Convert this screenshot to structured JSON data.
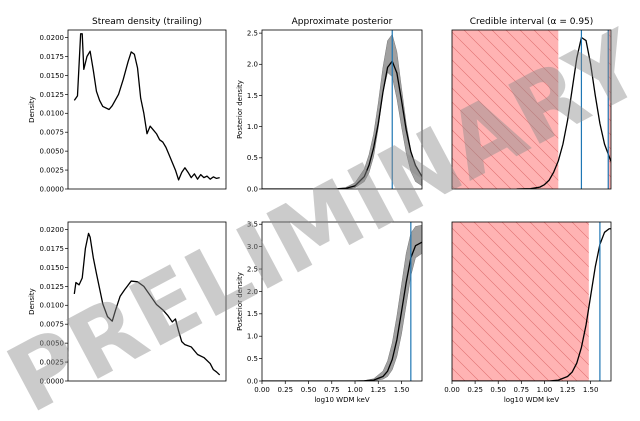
{
  "watermark": "PRELIMINARY",
  "chart_data": [
    {
      "id": "p00",
      "type": "line",
      "title": "Stream density (trailing)",
      "xlabel": "",
      "ylabel": "Density",
      "xlim": [
        0,
        100
      ],
      "ylim": [
        0,
        0.021
      ],
      "xticks": [],
      "xticklabels": [],
      "yticks": [
        0,
        0.0025,
        0.005,
        0.0075,
        0.01,
        0.0125,
        0.015,
        0.0175,
        0.02
      ],
      "yticklabels": [
        "0.0000",
        "0.0025",
        "0.0050",
        "0.0075",
        "0.0100",
        "0.0125",
        "0.0150",
        "0.0175",
        "0.0200"
      ],
      "series": [
        {
          "x": [
            4,
            6,
            8,
            9,
            10,
            12,
            14,
            16,
            18,
            20,
            22,
            26,
            28,
            32,
            35,
            38,
            40,
            42,
            44,
            46,
            48,
            50,
            52,
            54,
            56,
            58,
            60,
            62,
            64,
            66,
            68,
            70,
            72,
            74,
            76,
            78,
            80,
            82,
            84,
            86,
            88,
            90,
            92,
            94,
            96
          ],
          "y": [
            0.0117,
            0.0123,
            0.0205,
            0.0205,
            0.0158,
            0.0175,
            0.0182,
            0.0157,
            0.0129,
            0.0117,
            0.0109,
            0.0105,
            0.011,
            0.0125,
            0.0145,
            0.0168,
            0.0181,
            0.0178,
            0.016,
            0.012,
            0.01,
            0.0073,
            0.0083,
            0.0078,
            0.0073,
            0.0065,
            0.0062,
            0.0055,
            0.0045,
            0.0035,
            0.0025,
            0.0012,
            0.0022,
            0.0028,
            0.0022,
            0.0015,
            0.002,
            0.0013,
            0.0019,
            0.0015,
            0.0017,
            0.0013,
            0.0016,
            0.0014,
            0.0015
          ]
        }
      ]
    },
    {
      "id": "p01",
      "type": "line",
      "title": "Approximate posterior",
      "xlabel": "",
      "ylabel": "Posterior density",
      "xlim": [
        0,
        1.72
      ],
      "ylim": [
        0,
        2.55
      ],
      "xticks": [],
      "xticklabels": [],
      "yticks": [
        0,
        0.5,
        1.0,
        1.5,
        2.0,
        2.5
      ],
      "yticklabels": [
        "0.0",
        "0.5",
        "1.0",
        "1.5",
        "2.0",
        "2.5"
      ],
      "band": {
        "x": [
          0,
          0.6,
          0.8,
          0.9,
          1.0,
          1.1,
          1.15,
          1.2,
          1.25,
          1.3,
          1.35,
          1.4,
          1.45,
          1.5,
          1.55,
          1.6,
          1.65,
          1.72
        ],
        "lower": [
          0,
          0,
          0,
          0.003,
          0.02,
          0.12,
          0.26,
          0.52,
          0.98,
          1.55,
          1.87,
          1.8,
          1.45,
          1.0,
          0.58,
          0.28,
          0.12,
          0.05
        ],
        "upper": [
          0,
          0.002,
          0.008,
          0.025,
          0.1,
          0.32,
          0.55,
          0.88,
          1.38,
          1.95,
          2.38,
          2.48,
          2.2,
          1.62,
          1.05,
          0.62,
          0.35,
          0.2
        ]
      },
      "series": [
        {
          "x": [
            0,
            0.6,
            0.8,
            0.9,
            1.0,
            1.1,
            1.15,
            1.2,
            1.25,
            1.3,
            1.35,
            1.4,
            1.45,
            1.5,
            1.55,
            1.6,
            1.65,
            1.72
          ],
          "y": [
            0,
            0,
            0.002,
            0.01,
            0.05,
            0.2,
            0.38,
            0.66,
            1.05,
            1.55,
            1.95,
            2.05,
            1.86,
            1.42,
            0.95,
            0.6,
            0.38,
            0.2
          ]
        }
      ],
      "vlines": [
        1.4
      ]
    },
    {
      "id": "p02",
      "type": "line",
      "title": "Credible interval (α = 0.95)",
      "xlabel": "",
      "ylabel": "",
      "xlim": [
        0,
        1.72
      ],
      "ylim": [
        0,
        2.55
      ],
      "xticks": [],
      "xticklabels": [],
      "yticks": [],
      "yticklabels": [],
      "shaded": [
        [
          0,
          1.15
        ],
        [
          1.69,
          1.72
        ]
      ],
      "series": [
        {
          "x": [
            0.7,
            0.85,
            0.95,
            1.0,
            1.05,
            1.1,
            1.15,
            1.2,
            1.25,
            1.3,
            1.35,
            1.4,
            1.45,
            1.5,
            1.55,
            1.6,
            1.65,
            1.72
          ],
          "y": [
            0,
            0.005,
            0.03,
            0.07,
            0.14,
            0.27,
            0.45,
            0.72,
            1.1,
            1.6,
            2.1,
            2.43,
            2.38,
            2.0,
            1.5,
            1.05,
            0.72,
            0.44
          ]
        }
      ],
      "vlines": [
        1.4,
        1.69
      ]
    },
    {
      "id": "p10",
      "type": "line",
      "title": "",
      "xlabel": "",
      "ylabel": "Density",
      "xlim": [
        0,
        100
      ],
      "ylim": [
        0,
        0.021
      ],
      "xticks": [],
      "xticklabels": [],
      "yticks": [
        0,
        0.0025,
        0.005,
        0.0075,
        0.01,
        0.0125,
        0.015,
        0.0175,
        0.02
      ],
      "yticklabels": [
        "0.0000",
        "0.0025",
        "0.0050",
        "0.0075",
        "0.0100",
        "0.0125",
        "0.0150",
        "0.0175",
        "0.0200"
      ],
      "series": [
        {
          "x": [
            4,
            5,
            7,
            9,
            11,
            13,
            14,
            16,
            18,
            20,
            22,
            25,
            28,
            30,
            33,
            36,
            40,
            44,
            48,
            52,
            56,
            60,
            63,
            66,
            68,
            70,
            72,
            74,
            78,
            82,
            86,
            90,
            92,
            94,
            96
          ],
          "y": [
            0.0115,
            0.013,
            0.0127,
            0.0136,
            0.0175,
            0.0195,
            0.019,
            0.0163,
            0.0142,
            0.0122,
            0.0102,
            0.0085,
            0.0079,
            0.0093,
            0.0112,
            0.0121,
            0.0132,
            0.0131,
            0.0125,
            0.0113,
            0.0101,
            0.0094,
            0.0087,
            0.0078,
            0.0082,
            0.0066,
            0.0052,
            0.0048,
            0.0045,
            0.0035,
            0.0031,
            0.0023,
            0.0015,
            0.0012,
            0.0008
          ]
        }
      ]
    },
    {
      "id": "p11",
      "type": "line",
      "title": "",
      "xlabel": "log10 WDM keV",
      "ylabel": "Posterior density",
      "xlim": [
        0,
        1.72
      ],
      "ylim": [
        0,
        3.55
      ],
      "xticks": [
        0,
        0.25,
        0.5,
        0.75,
        1.0,
        1.25,
        1.5
      ],
      "xticklabels": [
        "0.00",
        "0.25",
        "0.50",
        "0.75",
        "1.00",
        "1.25",
        "1.50"
      ],
      "yticks": [
        0,
        0.5,
        1.0,
        1.5,
        2.0,
        2.5,
        3.0,
        3.5
      ],
      "yticklabels": [
        "0.0",
        "0.5",
        "1.0",
        "1.5",
        "2.0",
        "2.5",
        "3.0",
        "3.5"
      ],
      "band": {
        "x": [
          0,
          1.0,
          1.1,
          1.2,
          1.3,
          1.35,
          1.4,
          1.45,
          1.5,
          1.55,
          1.6,
          1.65,
          1.72
        ],
        "lower": [
          0,
          0,
          0,
          0.005,
          0.04,
          0.1,
          0.25,
          0.55,
          1.05,
          1.7,
          2.35,
          2.75,
          2.85
        ],
        "upper": [
          0,
          0.002,
          0.01,
          0.05,
          0.22,
          0.45,
          0.85,
          1.45,
          2.15,
          2.85,
          3.3,
          3.45,
          3.48
        ]
      },
      "series": [
        {
          "x": [
            0,
            1.0,
            1.1,
            1.2,
            1.3,
            1.35,
            1.4,
            1.45,
            1.5,
            1.55,
            1.6,
            1.65,
            1.72
          ],
          "y": [
            0,
            0,
            0.005,
            0.02,
            0.1,
            0.22,
            0.48,
            0.92,
            1.55,
            2.2,
            2.75,
            3.02,
            3.1
          ]
        }
      ],
      "vlines": [
        1.6
      ]
    },
    {
      "id": "p12",
      "type": "line",
      "title": "",
      "xlabel": "log10 WDM keV",
      "ylabel": "",
      "xlim": [
        0,
        1.72
      ],
      "ylim": [
        0,
        3.55
      ],
      "xticks": [
        0,
        0.25,
        0.5,
        0.75,
        1.0,
        1.25,
        1.5
      ],
      "xticklabels": [
        "0.00",
        "0.25",
        "0.50",
        "0.75",
        "1.00",
        "1.25",
        "1.50"
      ],
      "yticks": [],
      "yticklabels": [],
      "shaded": [
        [
          0,
          1.48
        ]
      ],
      "series": [
        {
          "x": [
            0,
            1.05,
            1.15,
            1.25,
            1.3,
            1.35,
            1.4,
            1.45,
            1.5,
            1.55,
            1.6,
            1.65,
            1.7,
            1.72
          ],
          "y": [
            0,
            0,
            0.02,
            0.1,
            0.2,
            0.4,
            0.75,
            1.25,
            1.9,
            2.55,
            3.05,
            3.32,
            3.4,
            3.4
          ]
        }
      ],
      "vlines": [
        1.6
      ]
    }
  ]
}
